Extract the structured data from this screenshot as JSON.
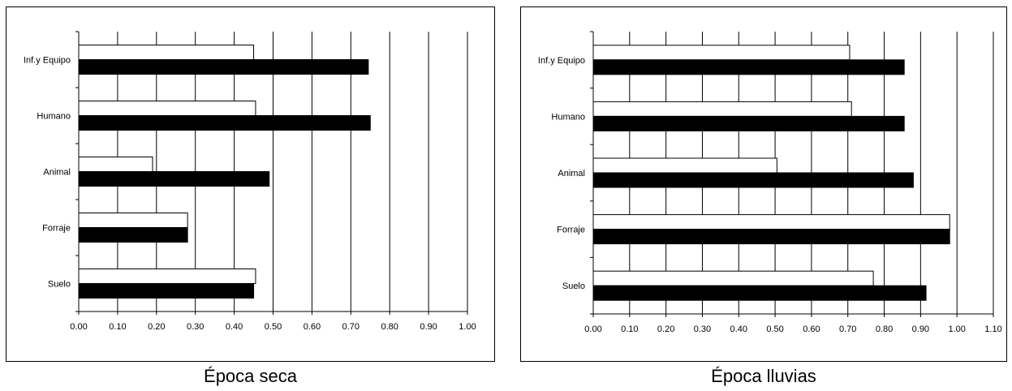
{
  "chart_data": [
    {
      "type": "bar",
      "orientation": "horizontal",
      "title": "Época seca",
      "categories": [
        "Inf.y Equipo",
        "Humano",
        "Animal",
        "Forraje",
        "Suelo"
      ],
      "series": [
        {
          "values": [
            0.45,
            0.455,
            0.19,
            0.28,
            0.455
          ],
          "color": "#ffffff"
        },
        {
          "values": [
            0.745,
            0.75,
            0.49,
            0.28,
            0.45
          ],
          "color": "#000000"
        }
      ],
      "xticks": [
        "0.00",
        "0.10",
        "0.20",
        "0.30",
        "0.40",
        "0.50",
        "0.60",
        "0.70",
        "0.80",
        "0.90",
        "1.00"
      ],
      "xlim": [
        0,
        1.0
      ],
      "grid": true
    },
    {
      "type": "bar",
      "orientation": "horizontal",
      "title": "Época lluvias",
      "categories": [
        "Inf.y Equipo",
        "Humano",
        "Animal",
        "Forraje",
        "Suelo"
      ],
      "series": [
        {
          "values": [
            0.705,
            0.71,
            0.505,
            0.98,
            0.77
          ],
          "color": "#ffffff"
        },
        {
          "values": [
            0.855,
            0.855,
            0.88,
            0.98,
            0.915
          ],
          "color": "#000000"
        }
      ],
      "xticks": [
        "0.00",
        "0.10",
        "0.20",
        "0.30",
        "0.40",
        "0.50",
        "0.60",
        "0.70",
        "0.80",
        "0.90",
        "1.00",
        "1.10"
      ],
      "xlim": [
        0,
        1.1
      ],
      "grid": true
    }
  ]
}
